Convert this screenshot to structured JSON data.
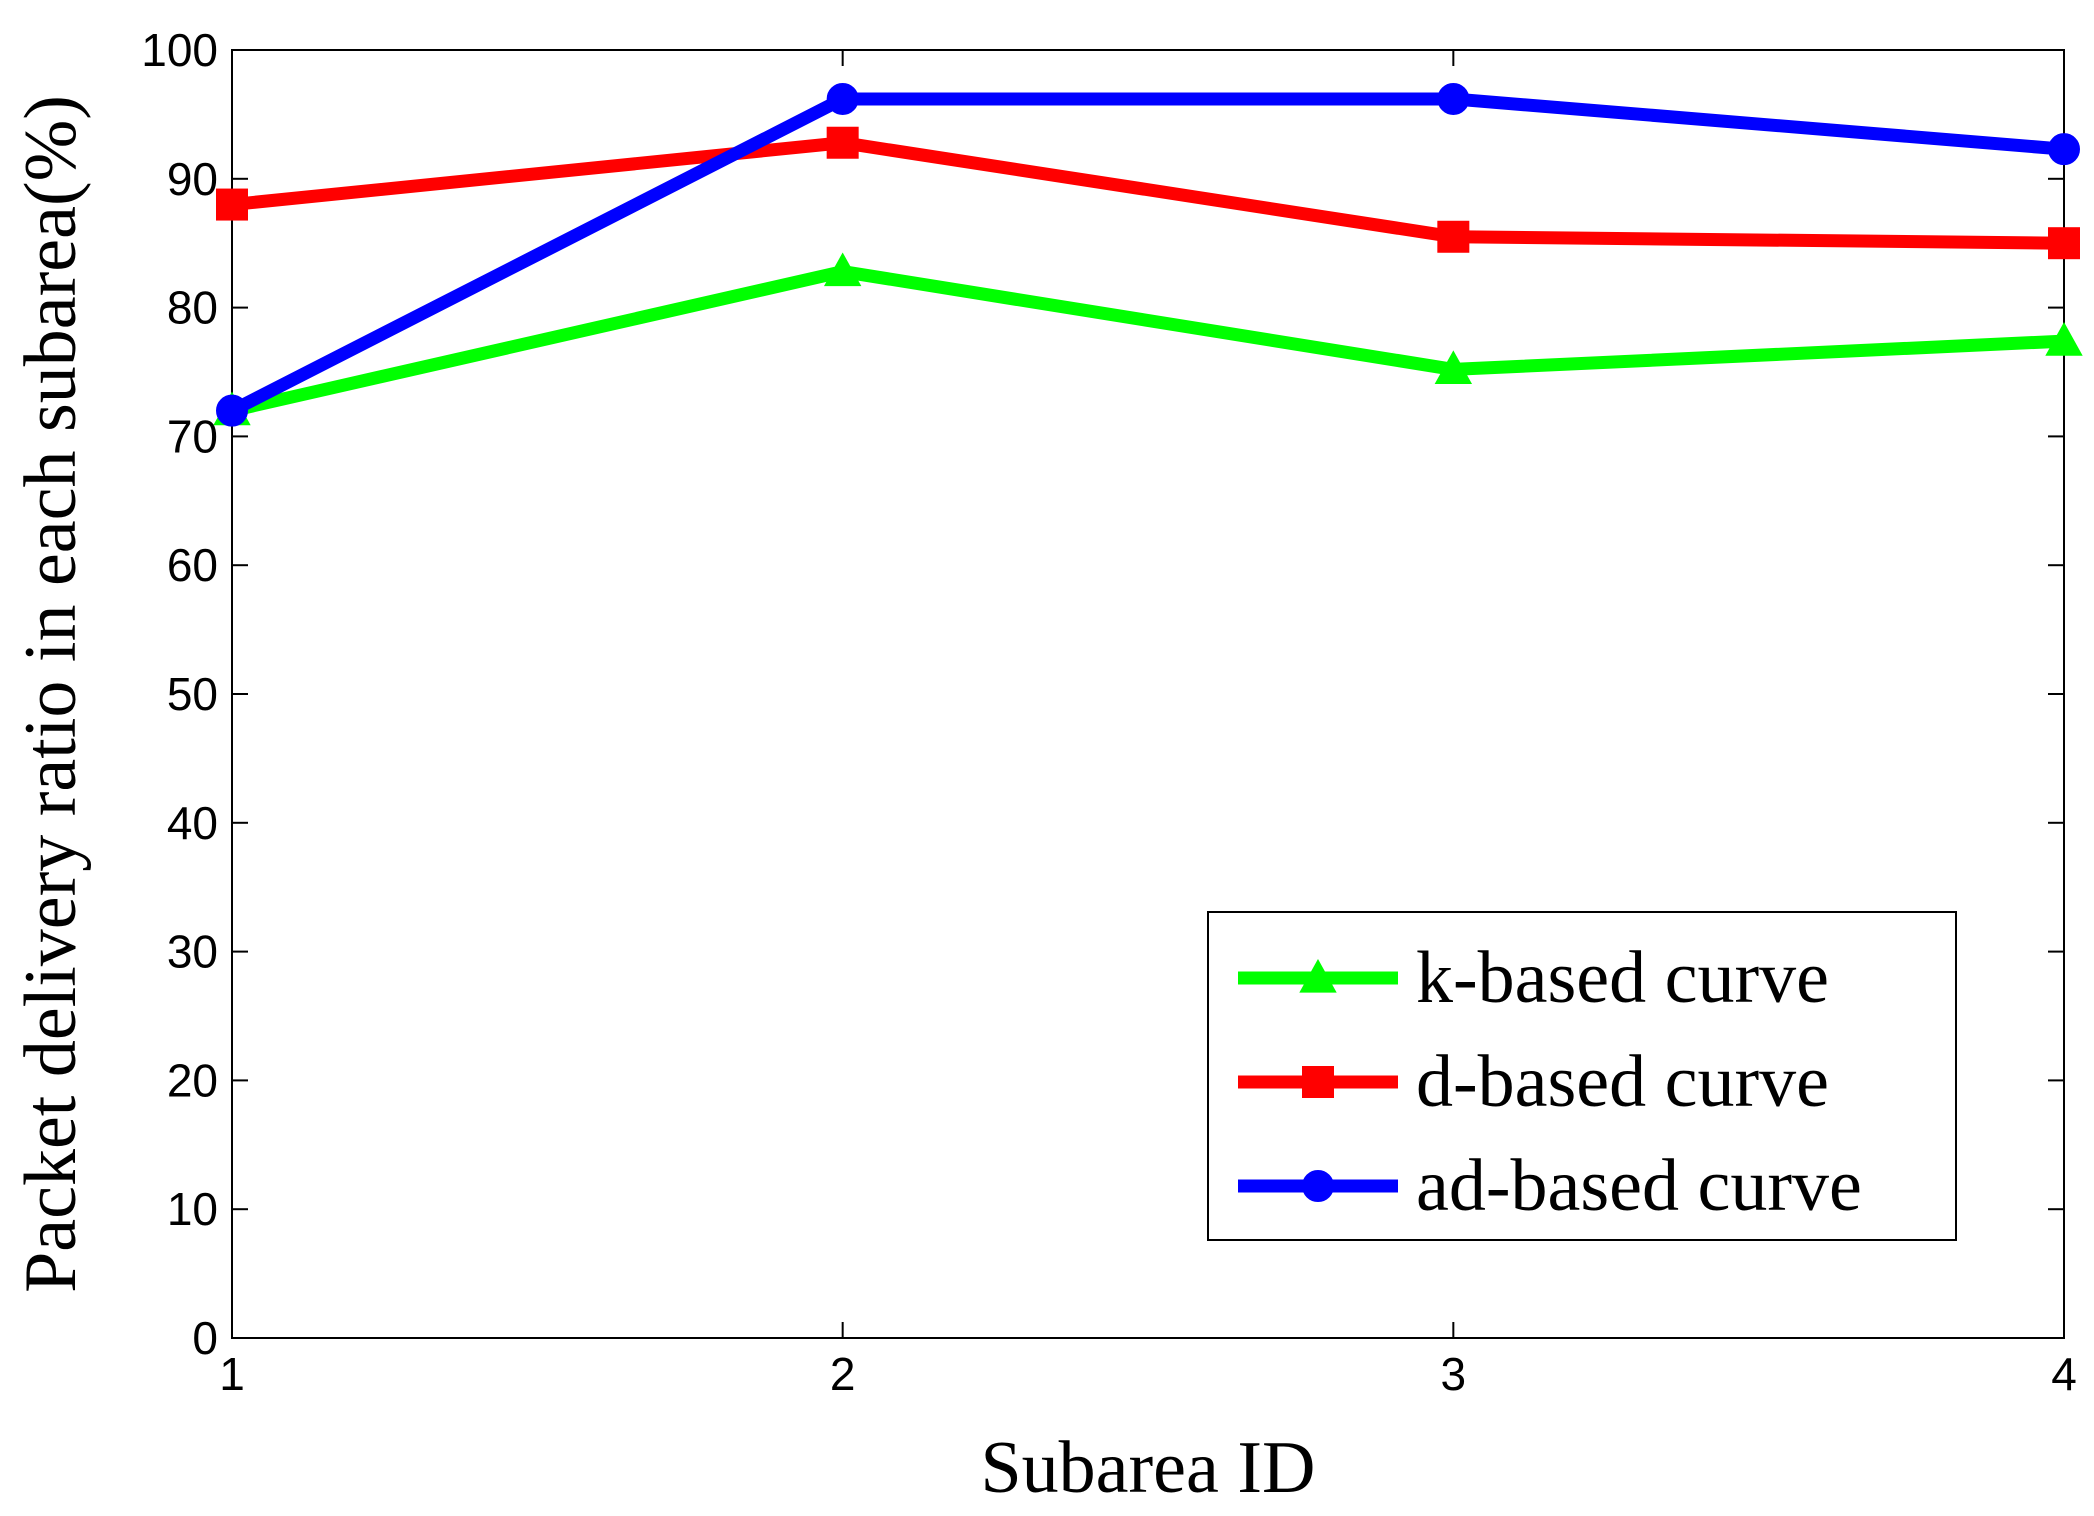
{
  "chart_data": {
    "type": "line",
    "title": "",
    "xlabel": "Subarea ID",
    "ylabel": "Packet delivery ratio in each subarea(%)",
    "x": [
      1,
      2,
      3,
      4
    ],
    "xlim": [
      1,
      4
    ],
    "ylim": [
      0,
      100
    ],
    "xticks": [
      "1",
      "2",
      "3",
      "4"
    ],
    "yticks": [
      "0",
      "10",
      "20",
      "30",
      "40",
      "50",
      "60",
      "70",
      "80",
      "90",
      "100"
    ],
    "grid": false,
    "legend_position": "bottom-right",
    "series": [
      {
        "name": "k-based curve",
        "color": "#00ff00",
        "marker": "triangle",
        "values": [
          72.0,
          82.8,
          75.2,
          77.4
        ]
      },
      {
        "name": "d-based curve",
        "color": "#ff0000",
        "marker": "square",
        "values": [
          88.0,
          92.8,
          85.5,
          85.0
        ]
      },
      {
        "name": "ad-based curve",
        "color": "#0000ff",
        "marker": "circle",
        "values": [
          72.0,
          96.2,
          96.2,
          92.3
        ]
      }
    ]
  }
}
